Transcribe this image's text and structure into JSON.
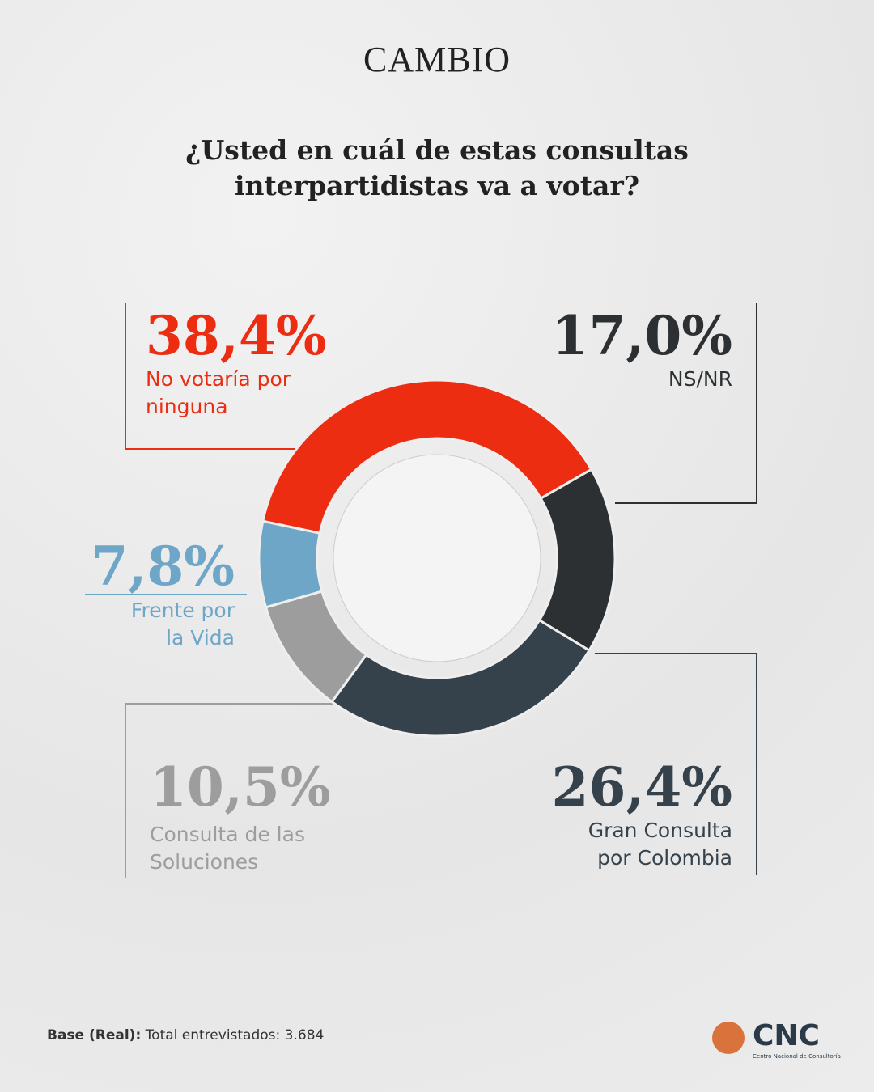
{
  "header": {
    "brand": "CAMBIO"
  },
  "chart_data": {
    "type": "donut",
    "title": "¿Usted en cuál de estas consultas interpartidistas va a votar?",
    "categories": [
      "No votaría por ninguna",
      "NS/NR",
      "Gran Consulta por Colombia",
      "Consulta de las Soluciones",
      "Frente por la Vida"
    ],
    "values": [
      38.4,
      17.0,
      26.4,
      10.5,
      7.8
    ],
    "value_labels": [
      "38,4%",
      "17,0%",
      "26,4%",
      "10,5%",
      "7,8%"
    ],
    "colors": [
      "#ec2d12",
      "#2c3032",
      "#36424b",
      "#9d9d9d",
      "#6ea6c7"
    ]
  },
  "footer": {
    "base_label": "Base (Real):",
    "base_text": "Total entrevistados: 3.684",
    "logo": "CNC",
    "logo_sub": "Centro Nacional de Consultoría"
  }
}
